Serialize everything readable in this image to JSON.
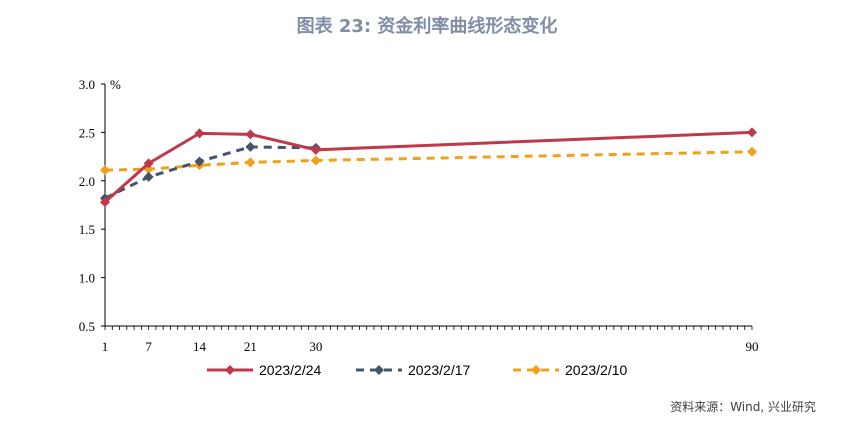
{
  "chart_data": {
    "type": "line",
    "title": "图表 23: 资金利率曲线形态变化",
    "ylabel": "%",
    "x_ticks": [
      1,
      7,
      14,
      21,
      30,
      90
    ],
    "xlim": [
      1,
      90
    ],
    "ylim": [
      0.5,
      3.0
    ],
    "y_ticks": [
      0.5,
      1.0,
      1.5,
      2.0,
      2.5,
      3.0
    ],
    "grid": false,
    "legend_position": "bottom",
    "series": [
      {
        "name": "2023/2/24",
        "color": "#c0394b",
        "style": "solid",
        "marker": "diamond",
        "x": [
          1,
          7,
          14,
          21,
          30,
          90
        ],
        "y": [
          1.78,
          2.18,
          2.49,
          2.48,
          2.32,
          2.5
        ]
      },
      {
        "name": "2023/2/17",
        "color": "#44546a",
        "style": "dashed",
        "marker": "diamond",
        "x": [
          1,
          7,
          14,
          21,
          30
        ],
        "y": [
          1.82,
          2.04,
          2.2,
          2.35,
          2.34
        ]
      },
      {
        "name": "2023/2/10",
        "color": "#f0a01c",
        "style": "dashed",
        "marker": "diamond",
        "x": [
          1,
          7,
          14,
          21,
          30,
          90
        ],
        "y": [
          2.11,
          2.12,
          2.16,
          2.19,
          2.21,
          2.3
        ]
      }
    ]
  },
  "source": "资料来源：Wind, 兴业研究"
}
